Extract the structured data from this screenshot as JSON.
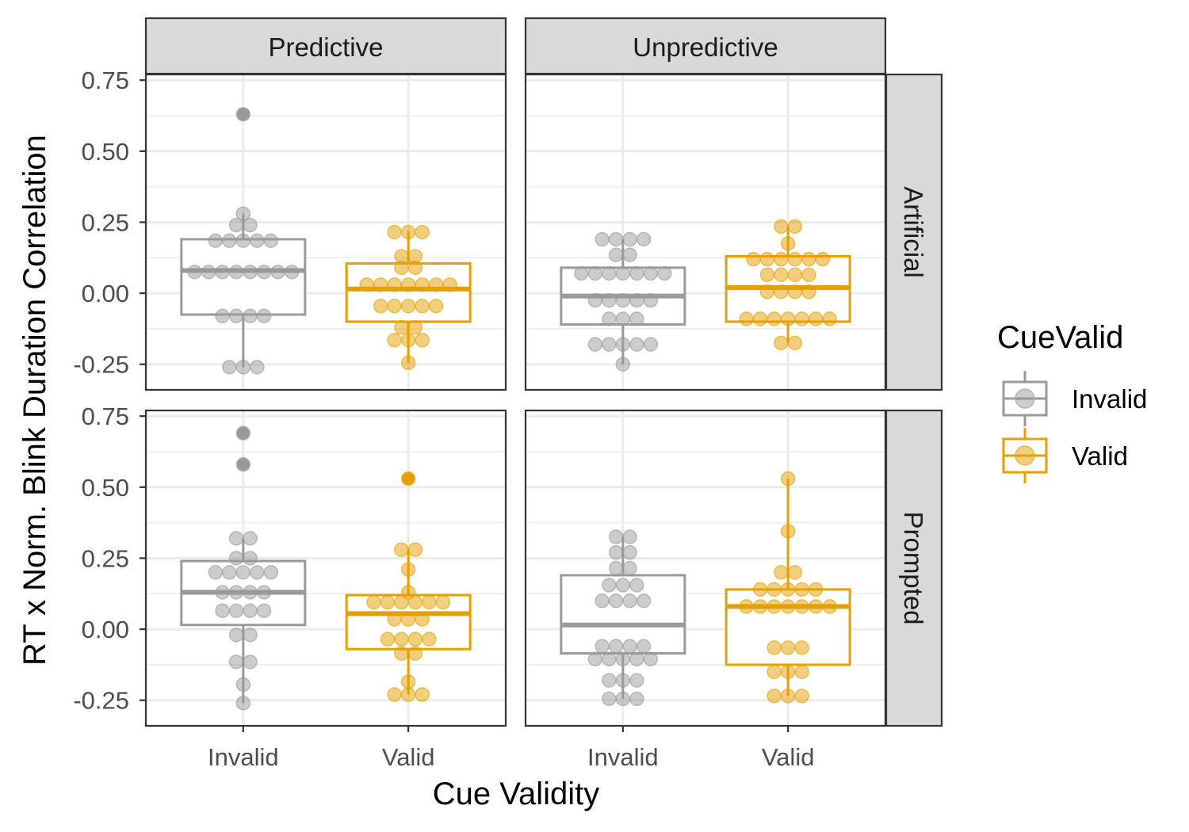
{
  "chart_data": {
    "type": "box",
    "xlabel": "Cue Validity",
    "ylabel": "RT x Norm. Blink Duration Correlation",
    "ylim": [
      -0.34,
      0.77
    ],
    "yticks": [
      -0.25,
      0.0,
      0.25,
      0.5,
      0.75
    ],
    "ytick_labels": [
      "-0.25",
      "0.00",
      "0.25",
      "0.50",
      "0.75"
    ],
    "categories": [
      "Invalid",
      "Valid"
    ],
    "columns": [
      "Predictive",
      "Unpredictive"
    ],
    "rows": [
      "Artificial",
      "Prompted"
    ],
    "legend": {
      "title": "CueValid",
      "position": "right",
      "entries": [
        {
          "label": "Invalid",
          "color": "#999999"
        },
        {
          "label": "Valid",
          "color": "#E69F00"
        }
      ]
    },
    "grid": true,
    "panels": [
      {
        "row": "Artificial",
        "col": "Predictive",
        "groups": [
          {
            "category": "Invalid",
            "box": {
              "lower_whisker": -0.26,
              "q1": -0.075,
              "median": 0.08,
              "q3": 0.19,
              "upper_whisker": 0.28
            },
            "points": [
              0.63,
              0.28,
              0.24,
              0.24,
              0.185,
              0.185,
              0.185,
              0.185,
              0.185,
              0.075,
              0.075,
              0.075,
              0.075,
              0.075,
              0.075,
              0.075,
              0.075,
              -0.08,
              -0.08,
              -0.08,
              -0.08,
              -0.26,
              -0.26,
              -0.26
            ],
            "outliers": [
              0.63
            ]
          },
          {
            "category": "Valid",
            "box": {
              "lower_whisker": -0.245,
              "q1": -0.1,
              "median": 0.015,
              "q3": 0.105,
              "upper_whisker": 0.22
            },
            "points": [
              0.215,
              0.215,
              0.215,
              0.13,
              0.13,
              0.09,
              0.09,
              0.03,
              0.03,
              0.03,
              0.03,
              0.03,
              0.03,
              0.03,
              -0.045,
              -0.045,
              -0.045,
              -0.045,
              -0.045,
              -0.12,
              -0.12,
              -0.165,
              -0.165,
              -0.165,
              -0.245
            ],
            "outliers": []
          }
        ]
      },
      {
        "row": "Artificial",
        "col": "Unpredictive",
        "groups": [
          {
            "category": "Invalid",
            "box": {
              "lower_whisker": -0.25,
              "q1": -0.11,
              "median": -0.01,
              "q3": 0.09,
              "upper_whisker": 0.19
            },
            "points": [
              0.19,
              0.19,
              0.19,
              0.19,
              0.135,
              0.135,
              0.07,
              0.07,
              0.07,
              0.07,
              0.07,
              0.07,
              0.07,
              -0.025,
              -0.025,
              -0.025,
              -0.025,
              -0.025,
              -0.09,
              -0.09,
              -0.09,
              -0.18,
              -0.18,
              -0.18,
              -0.18,
              -0.18,
              -0.25
            ],
            "outliers": []
          },
          {
            "category": "Valid",
            "box": {
              "lower_whisker": -0.175,
              "q1": -0.1,
              "median": 0.02,
              "q3": 0.13,
              "upper_whisker": 0.235
            },
            "points": [
              0.235,
              0.235,
              0.175,
              0.12,
              0.12,
              0.12,
              0.12,
              0.12,
              0.12,
              0.065,
              0.065,
              0.065,
              0.065,
              0.005,
              0.005,
              0.005,
              0.005,
              -0.09,
              -0.09,
              -0.09,
              -0.09,
              -0.09,
              -0.09,
              -0.09,
              -0.175,
              -0.175
            ],
            "outliers": []
          }
        ]
      },
      {
        "row": "Prompted",
        "col": "Predictive",
        "groups": [
          {
            "category": "Invalid",
            "box": {
              "lower_whisker": -0.26,
              "q1": 0.015,
              "median": 0.13,
              "q3": 0.24,
              "upper_whisker": 0.32
            },
            "points": [
              0.69,
              0.58,
              0.32,
              0.32,
              0.25,
              0.25,
              0.2,
              0.2,
              0.2,
              0.2,
              0.2,
              0.13,
              0.13,
              0.13,
              0.13,
              0.065,
              0.065,
              0.065,
              0.065,
              -0.02,
              -0.02,
              -0.115,
              -0.115,
              -0.195,
              -0.26
            ],
            "outliers": [
              0.69,
              0.58
            ]
          },
          {
            "category": "Valid",
            "box": {
              "lower_whisker": -0.23,
              "q1": -0.07,
              "median": 0.055,
              "q3": 0.12,
              "upper_whisker": 0.28
            },
            "points": [
              0.53,
              0.28,
              0.28,
              0.21,
              0.13,
              0.095,
              0.095,
              0.095,
              0.095,
              0.095,
              0.095,
              0.035,
              0.035,
              0.035,
              -0.035,
              -0.035,
              -0.035,
              -0.035,
              -0.085,
              -0.085,
              -0.185,
              -0.23,
              -0.23,
              -0.23
            ],
            "outliers": [
              0.53
            ]
          }
        ]
      },
      {
        "row": "Prompted",
        "col": "Unpredictive",
        "groups": [
          {
            "category": "Invalid",
            "box": {
              "lower_whisker": -0.245,
              "q1": -0.085,
              "median": 0.015,
              "q3": 0.19,
              "upper_whisker": 0.325
            },
            "points": [
              0.325,
              0.325,
              0.27,
              0.27,
              0.215,
              0.215,
              0.155,
              0.155,
              0.155,
              0.1,
              0.1,
              0.1,
              0.1,
              -0.06,
              -0.06,
              -0.06,
              -0.06,
              -0.105,
              -0.105,
              -0.105,
              -0.105,
              -0.105,
              -0.18,
              -0.18,
              -0.18,
              -0.245,
              -0.245,
              -0.245
            ],
            "outliers": []
          },
          {
            "category": "Valid",
            "box": {
              "lower_whisker": -0.235,
              "q1": -0.125,
              "median": 0.08,
              "q3": 0.14,
              "upper_whisker": 0.53
            },
            "points": [
              0.53,
              0.345,
              0.2,
              0.2,
              0.14,
              0.14,
              0.14,
              0.14,
              0.14,
              0.08,
              0.08,
              0.08,
              0.08,
              0.08,
              0.08,
              0.08,
              -0.065,
              -0.065,
              -0.065,
              -0.15,
              -0.15,
              -0.15,
              -0.235,
              -0.235,
              -0.235
            ],
            "outliers": []
          }
        ]
      }
    ]
  }
}
